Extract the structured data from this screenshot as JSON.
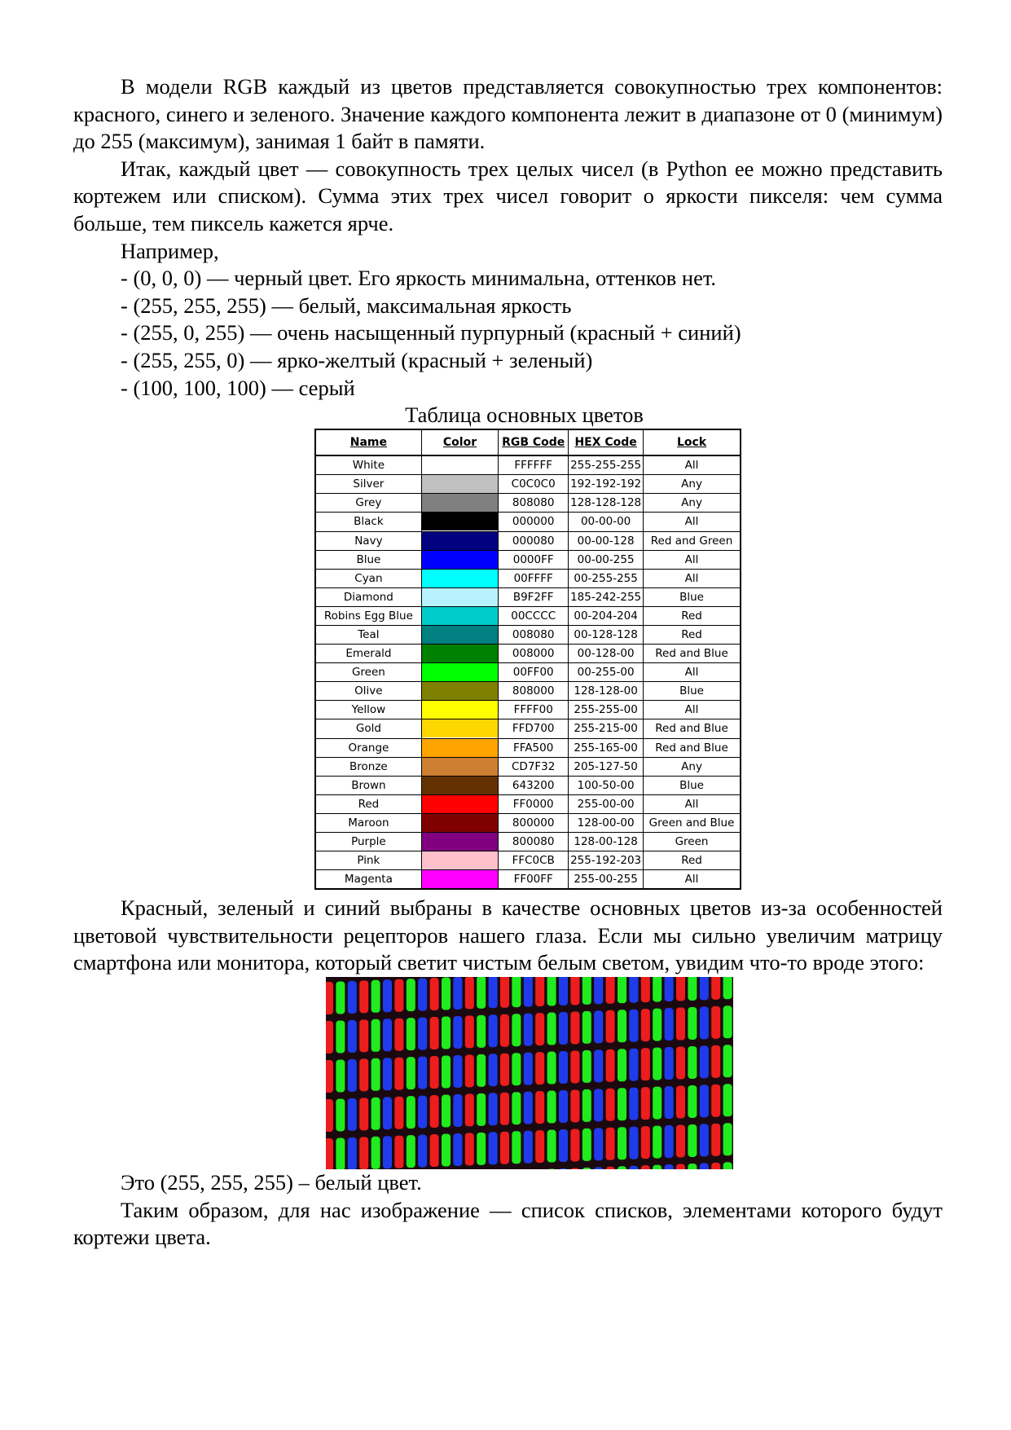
{
  "paragraphs_top": [
    "В модели RGB каждый из цветов представляется совокупностью трех компонентов: красного, синего и зеленого. Значение каждого компонента лежит в диапазоне от 0 (минимум) до 255 (максимум), занимая 1 байт в памяти.",
    "Итак, каждый цвет — совокупность трех целых чисел (в Python ее можно представить кортежем или списком). Сумма этих трех чисел говорит о яркости пикселя: чем сумма больше, тем пиксель кажется ярче."
  ],
  "example_intro": "Например,",
  "examples": [
    "- (0, 0, 0) — черный цвет. Его яркость минимальна, оттенков нет.",
    "- (255, 255, 255) — белый, максимальная яркость",
    "- (255, 0, 255) — очень насыщенный пурпурный (красный + синий)",
    "- (255, 255, 0) — ярко-желтый (красный + зеленый)",
    "- (100, 100, 100) — серый"
  ],
  "table_title": "Таблица основных цветов",
  "table": {
    "headers": [
      "Name",
      "Color",
      "RGB Code",
      "HEX Code",
      "Lock"
    ],
    "rows": [
      {
        "name": "White",
        "color": "#FFFFFF",
        "rgb": "FFFFFF",
        "hex": "255-255-255",
        "lock": "All"
      },
      {
        "name": "Silver",
        "color": "#C0C0C0",
        "rgb": "C0C0C0",
        "hex": "192-192-192",
        "lock": "Any"
      },
      {
        "name": "Grey",
        "color": "#808080",
        "rgb": "808080",
        "hex": "128-128-128",
        "lock": "Any"
      },
      {
        "name": "Black",
        "color": "#000000",
        "rgb": "000000",
        "hex": "00-00-00",
        "lock": "All"
      },
      {
        "name": "Navy",
        "color": "#000080",
        "rgb": "000080",
        "hex": "00-00-128",
        "lock": "Red and Green"
      },
      {
        "name": "Blue",
        "color": "#0000FF",
        "rgb": "0000FF",
        "hex": "00-00-255",
        "lock": "All"
      },
      {
        "name": "Cyan",
        "color": "#00FFFF",
        "rgb": "00FFFF",
        "hex": "00-255-255",
        "lock": "All"
      },
      {
        "name": "Diamond",
        "color": "#B9F2FF",
        "rgb": "B9F2FF",
        "hex": "185-242-255",
        "lock": "Blue"
      },
      {
        "name": "Robins Egg Blue",
        "color": "#00CCCC",
        "rgb": "00CCCC",
        "hex": "00-204-204",
        "lock": "Red"
      },
      {
        "name": "Teal",
        "color": "#008080",
        "rgb": "008080",
        "hex": "00-128-128",
        "lock": "Red"
      },
      {
        "name": "Emerald",
        "color": "#008000",
        "rgb": "008000",
        "hex": "00-128-00",
        "lock": "Red and Blue"
      },
      {
        "name": "Green",
        "color": "#00FF00",
        "rgb": "00FF00",
        "hex": "00-255-00",
        "lock": "All"
      },
      {
        "name": "Olive",
        "color": "#808000",
        "rgb": "808000",
        "hex": "128-128-00",
        "lock": "Blue"
      },
      {
        "name": "Yellow",
        "color": "#FFFF00",
        "rgb": "FFFF00",
        "hex": "255-255-00",
        "lock": "All"
      },
      {
        "name": "Gold",
        "color": "#FFD700",
        "rgb": "FFD700",
        "hex": "255-215-00",
        "lock": "Red and Blue"
      },
      {
        "name": "Orange",
        "color": "#FFA500",
        "rgb": "FFA500",
        "hex": "255-165-00",
        "lock": "Red and Blue"
      },
      {
        "name": "Bronze",
        "color": "#CD7F32",
        "rgb": "CD7F32",
        "hex": "205-127-50",
        "lock": "Any"
      },
      {
        "name": "Brown",
        "color": "#643200",
        "rgb": "643200",
        "hex": "100-50-00",
        "lock": "Blue"
      },
      {
        "name": "Red",
        "color": "#FF0000",
        "rgb": "FF0000",
        "hex": "255-00-00",
        "lock": "All"
      },
      {
        "name": "Maroon",
        "color": "#800000",
        "rgb": "800000",
        "hex": "128-00-00",
        "lock": "Green and Blue"
      },
      {
        "name": "Purple",
        "color": "#800080",
        "rgb": "800080",
        "hex": "128-00-128",
        "lock": "Green"
      },
      {
        "name": "Pink",
        "color": "#FFC0CB",
        "rgb": "FFC0CB",
        "hex": "255-192-203",
        "lock": "Red"
      },
      {
        "name": "Magenta",
        "color": "#FF00FF",
        "rgb": "FF00FF",
        "hex": "255-00-255",
        "lock": "All"
      }
    ]
  },
  "paragraph_after_table": "Красный, зеленый и синий выбраны в качестве основных цветов из-за особенностей цветовой чувствительности рецепторов нашего глаза. Если мы сильно увеличим матрицу смартфона или монитора, который светит чистым белым светом, увидим что-то вроде этого:",
  "subpixel_image": {
    "colors": [
      "#ff2020",
      "#20ff20",
      "#2040ff"
    ],
    "background": "#1a0a10"
  },
  "paragraphs_bottom": [
    "Это (255, 255, 255) – белый цвет.",
    "Таким образом, для нас изображение — список списков, элементами которого будут кортежи цвета."
  ]
}
